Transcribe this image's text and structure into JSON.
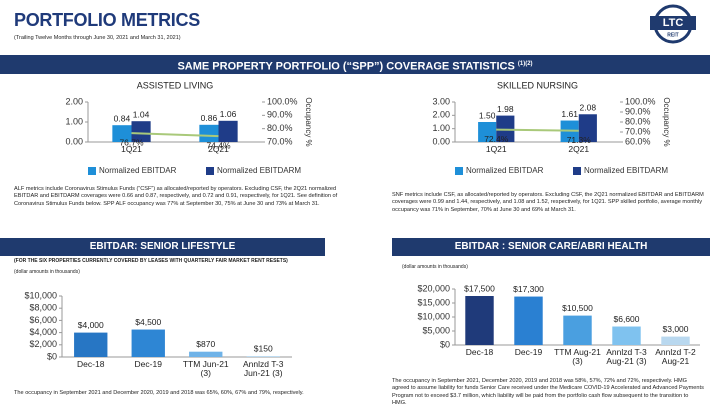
{
  "header": {
    "title": "PORTFOLIO METRICS",
    "subtitle": "(Trailing Twelve Months through June 30, 2021 and March 31, 2021)",
    "logo": "LTC",
    "logo_sub": "REIT"
  },
  "coverage": {
    "title": "SAME PROPERTY PORTFOLIO (“SPP”) COVERAGE STATISTICS ",
    "footnote": "(1)(2)",
    "notes": [
      "ALF metrics include Coronavirus Stimulus Funds (“CSF”) as allocated/reported by operators. Excluding CSF, the 2Q21 normalized EBITDAR and EBITDARM coverages were 0.66 and 0.87, respectively, and 0.72 and 0.91, respectively, for 1Q21. See definition of Coronavirus Stimulus Funds below. SPP ALF occupancy was 77% at September 30, 75% at June 30 and 73% at March 31.",
      "SNF metrics include CSF, as allocated/reported by operators.  Excluding CSF, the 2Q21 normalized EBITDAR and EBITDARM coverages were 0.99 and 1.44, respectively, and 1.08 and 1.52, respectively, for 1Q21. SPP skilled portfolio, average monthly occupancy was 71% in September, 70% at June 30 and 69% at March 31."
    ]
  },
  "sections": [
    {
      "title": "EBITDAR:  SENIOR LIFESTYLE",
      "subtitle": "(FOR THE SIX PROPERTIES CURRENTLY COVERED BY LEASES WITH QUARTERLY FAIR MARKET RENT RESETS)",
      "units": "(dollar amounts in thousands)",
      "note": "The occupancy in September 2021 and December 2020, 2019 and 2018 was 65%, 60%, 67% and 79%, respectively."
    },
    {
      "title": "EBITDAR :  SENIOR CARE/ABRI HEALTH",
      "units": "(dollar amounts in thousands)",
      "note": "The occupancy in September 2021, December 2020, 2019 and 2018 was 58%, 57%, 72% and 72%, respectively. HMG agreed to assume liability for funds Senior Care received under the Medicare COVID-19 Accelerated and Advanced Payments Program not to exceed $3.7 million, which liability will be paid from the portfolio cash flow subsequent to the transition to HMG."
    }
  ],
  "chart_data": [
    {
      "type": "bar",
      "title": "ASSISTED LIVING",
      "categories": [
        "1Q21",
        "2Q21"
      ],
      "series": [
        {
          "name": "Normalized EBITDAR",
          "color": "#1e8fd8",
          "values": [
            0.84,
            0.86
          ]
        },
        {
          "name": "Normalized EBITDARM",
          "color": "#1f3c88",
          "values": [
            1.04,
            1.06
          ]
        },
        {
          "type": "line",
          "axis": "y2",
          "color": "#a9c97a",
          "values": [
            76.7,
            74.4
          ],
          "value_labels": [
            "76.7%",
            "74.4%"
          ]
        }
      ],
      "ylim": [
        0,
        2
      ],
      "yticks": [
        {
          "value": 0,
          "label": "0.00"
        },
        {
          "value": 1,
          "label": "1.00"
        },
        {
          "value": 2,
          "label": "2.00"
        }
      ],
      "y2lim": [
        70,
        100
      ],
      "y2ticks": [
        {
          "value": 70,
          "label": "70.0%"
        },
        {
          "value": 80,
          "label": "80.0%"
        },
        {
          "value": 90,
          "label": "90.0%"
        },
        {
          "value": 100,
          "label": "100.0%"
        }
      ],
      "y2label": "Occupancy %",
      "grid": false
    },
    {
      "type": "bar",
      "title": "SKILLED NURSING",
      "categories": [
        "1Q21",
        "2Q21"
      ],
      "series": [
        {
          "name": "Normalized EBITDAR",
          "color": "#1e8fd8",
          "values": [
            1.5,
            1.61
          ],
          "value_labels": [
            "1.50",
            "1.61"
          ]
        },
        {
          "name": "Normalized EBITDARM",
          "color": "#1f3c88",
          "values": [
            1.98,
            2.08
          ]
        },
        {
          "type": "line",
          "axis": "y2",
          "color": "#a9c97a",
          "values": [
            72.4,
            71.3
          ],
          "value_labels": [
            "72.4%",
            "71.3%"
          ]
        }
      ],
      "ylim": [
        0,
        3
      ],
      "yticks": [
        {
          "value": 0,
          "label": "0.00"
        },
        {
          "value": 1,
          "label": "1.00"
        },
        {
          "value": 2,
          "label": "2.00"
        },
        {
          "value": 3,
          "label": "3.00"
        }
      ],
      "y2lim": [
        60,
        100
      ],
      "y2ticks": [
        {
          "value": 60,
          "label": "60.0%"
        },
        {
          "value": 70,
          "label": "70.0%"
        },
        {
          "value": 80,
          "label": "80.0%"
        },
        {
          "value": 90,
          "label": "90.0%"
        },
        {
          "value": 100,
          "label": "100.0%"
        }
      ],
      "y2label": "Occupancy %",
      "grid": false
    },
    {
      "type": "bar",
      "categories": [
        "Dec-18",
        "Dec-19",
        "TTM Jun-21 (3)",
        "Annlzd T-3 Jun-21 (3)"
      ],
      "values": [
        4000,
        4500,
        870,
        150
      ],
      "value_labels": [
        "$4,000",
        "$4,500",
        "$870",
        "$150"
      ],
      "colors": [
        "#2776c4",
        "#2e86d4",
        "#6fb3e8",
        "#b9d8ef"
      ],
      "ylim": [
        0,
        10000
      ],
      "yticks": [
        {
          "value": 0,
          "label": "$0"
        },
        {
          "value": 2000,
          "label": "$2,000"
        },
        {
          "value": 4000,
          "label": "$4,000"
        },
        {
          "value": 6000,
          "label": "$6,000"
        },
        {
          "value": 8000,
          "label": "$8,000"
        },
        {
          "value": 10000,
          "label": "$10,000"
        }
      ],
      "grid": false
    },
    {
      "type": "bar",
      "categories": [
        "Dec-18",
        "Dec-19",
        "TTM Aug-21 (3)",
        "Annlzd T-3 Aug-21 (3)",
        "Annlzd T-2 Aug-21"
      ],
      "values": [
        17500,
        17300,
        10500,
        6600,
        3000
      ],
      "value_labels": [
        "$17,500",
        "$17,300",
        "$10,500",
        "$6,600",
        "$3,000"
      ],
      "colors": [
        "#1f3a7a",
        "#2a80d2",
        "#4a9fe0",
        "#7fc2ef",
        "#b9d8ef"
      ],
      "ylim": [
        0,
        20000
      ],
      "yticks": [
        {
          "value": 0,
          "label": "$0"
        },
        {
          "value": 5000,
          "label": "$5,000"
        },
        {
          "value": 10000,
          "label": "$10,000"
        },
        {
          "value": 15000,
          "label": "$15,000"
        },
        {
          "value": 20000,
          "label": "$20,000"
        }
      ],
      "grid": false
    }
  ]
}
